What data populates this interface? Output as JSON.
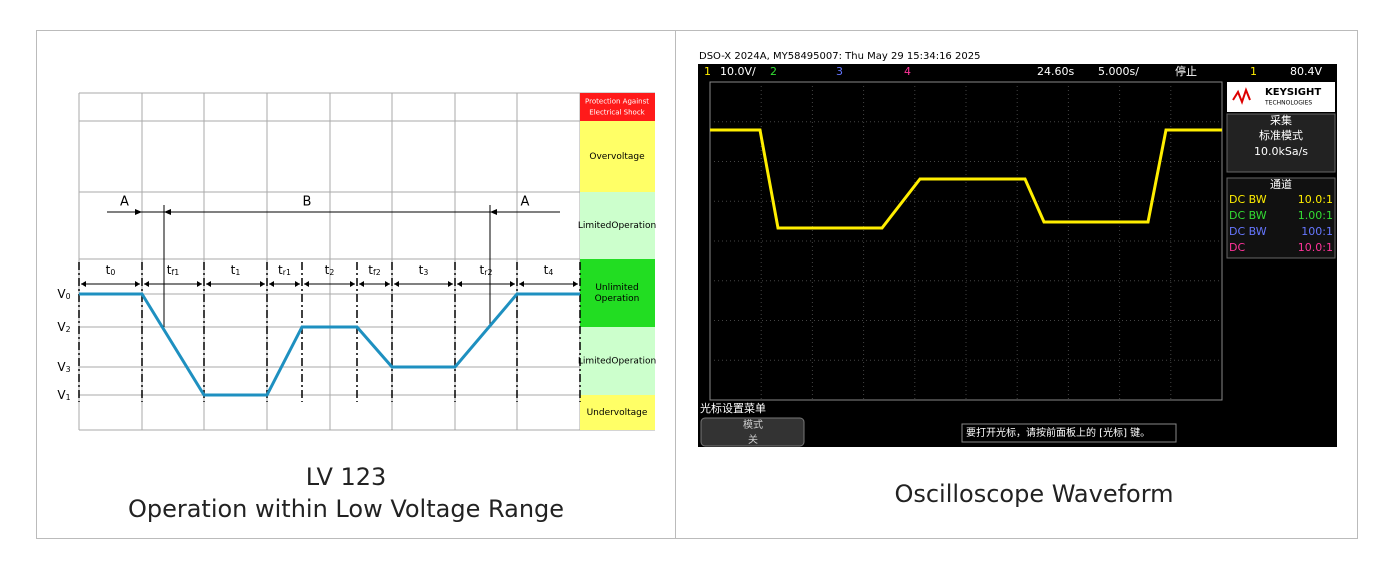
{
  "left": {
    "zones": [
      [
        "Protection Against",
        "Electrical Shock"
      ],
      [
        "Overvoltage"
      ],
      [
        "LimitedOperation"
      ],
      [
        "Unlimited",
        "Operation"
      ],
      [
        "LimitedOperation"
      ],
      [
        "Undervoltage"
      ]
    ],
    "segments": [
      "A",
      "B",
      "A"
    ],
    "intervals": [
      {
        "main": "t",
        "sub": "0"
      },
      {
        "main": "t",
        "sub": "f1"
      },
      {
        "main": "t",
        "sub": "1"
      },
      {
        "main": "t",
        "sub": "r1"
      },
      {
        "main": "t",
        "sub": "2"
      },
      {
        "main": "t",
        "sub": "f2"
      },
      {
        "main": "t",
        "sub": "3"
      },
      {
        "main": "t",
        "sub": "r2"
      },
      {
        "main": "t",
        "sub": "4"
      }
    ],
    "levels": [
      {
        "main": "V",
        "sub": "0"
      },
      {
        "main": "V",
        "sub": "2"
      },
      {
        "main": "V",
        "sub": "3"
      },
      {
        "main": "V",
        "sub": "1"
      }
    ],
    "caption": [
      "LV 123",
      "Operation within Low Voltage Range"
    ]
  },
  "right": {
    "header": "DSO-X 2024A, MY58495007: Thu May 29 15:34:16 2025",
    "status": [
      "1",
      "10.0V/",
      "2",
      "3",
      "4",
      "24.60s",
      "5.000s/",
      "停止",
      "1",
      "80.4V"
    ],
    "logo": [
      "KEYSIGHT",
      "TECHNOLOGIES"
    ],
    "acquire": {
      "title": "采集",
      "mode": "标准模式",
      "rate": "10.0kSa/s"
    },
    "channels": {
      "title": "通道",
      "rows": [
        [
          "DC BW",
          "10.0:1"
        ],
        [
          "DC BW",
          "1.00:1"
        ],
        [
          "DC BW",
          "100:1"
        ],
        [
          "DC",
          "10.0:1"
        ]
      ]
    },
    "menu": {
      "title": "光标设置菜单",
      "label": "模式",
      "value": "关"
    },
    "message": "要打开光标，请按前面板上的 [光标] 键。",
    "caption": "Oscilloscope Waveform"
  }
}
